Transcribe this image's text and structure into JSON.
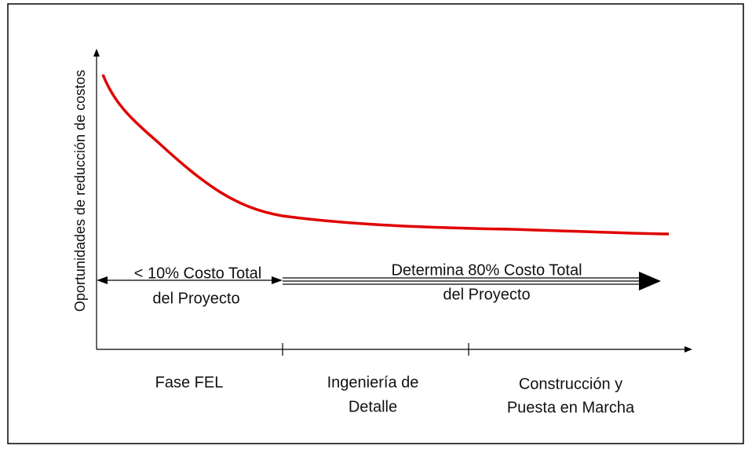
{
  "y_axis_label": "Oportunidades de reducción de costos",
  "annotations": [
    {
      "lines": [
        "< 10% Costo Total",
        "del Proyecto"
      ]
    },
    {
      "lines": [
        "Determina 80% Costo Total",
        "del Proyecto"
      ]
    }
  ],
  "phases": [
    {
      "lines": [
        "Fase FEL"
      ]
    },
    {
      "lines": [
        "Ingeniería de",
        "Detalle"
      ]
    },
    {
      "lines": [
        "Construcción y",
        "Puesta en Marcha"
      ]
    }
  ]
}
